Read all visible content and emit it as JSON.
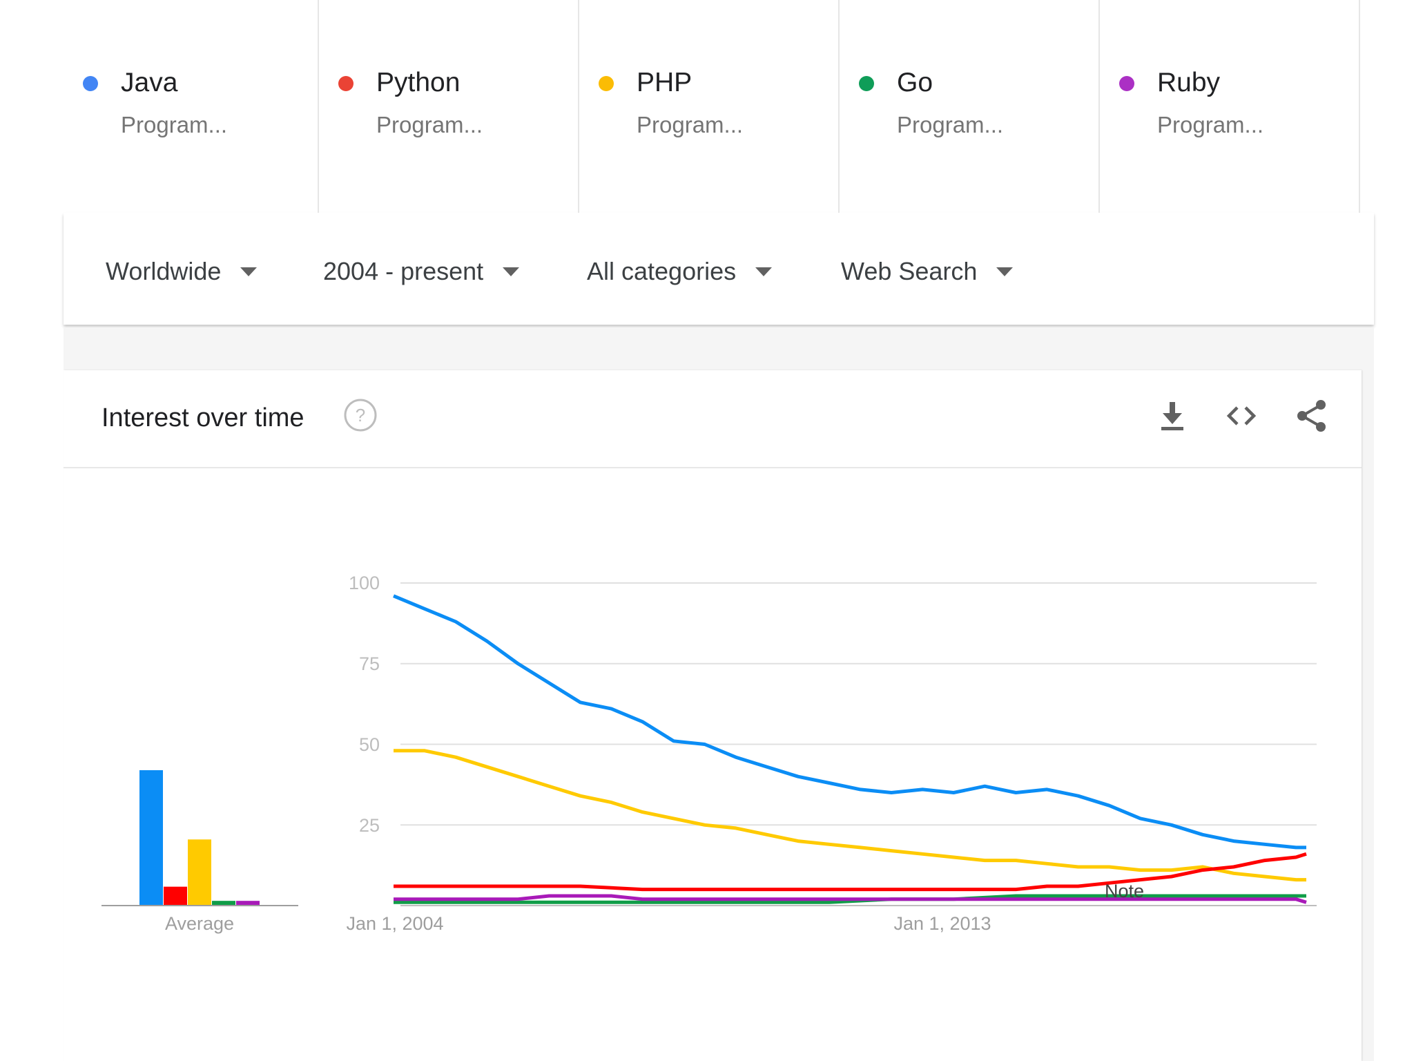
{
  "terms": [
    {
      "name": "Java",
      "subtitle": "Program...",
      "color": "#4285f4"
    },
    {
      "name": "Python",
      "subtitle": "Program...",
      "color": "#ea4335"
    },
    {
      "name": "PHP",
      "subtitle": "Program...",
      "color": "#fbbc04"
    },
    {
      "name": "Go",
      "subtitle": "Program...",
      "color": "#0f9d58"
    },
    {
      "name": "Ruby",
      "subtitle": "Program...",
      "color": "#ab30c4"
    }
  ],
  "filters": {
    "region": "Worldwide",
    "time": "2004 - present",
    "category": "All categories",
    "property": "Web Search"
  },
  "card": {
    "title": "Interest over time",
    "icons": [
      "help-icon",
      "download-icon",
      "embed-code-icon",
      "share-icon"
    ]
  },
  "chart_data": {
    "type": "line",
    "y_ticks": [
      "100",
      "75",
      "50",
      "25"
    ],
    "x_labels": [
      "Jan 1, 2004",
      "Jan 1, 2013"
    ],
    "ylim": [
      0,
      100
    ],
    "xlim": [
      "2004-01",
      "2018-09"
    ],
    "grid": true,
    "annotation": "Note",
    "average_label": "Average",
    "averages": [
      {
        "name": "Java",
        "value": 43,
        "color": "#0b8df5"
      },
      {
        "name": "Python",
        "value": 6,
        "color": "#ff0000"
      },
      {
        "name": "PHP",
        "value": 21,
        "color": "#ffca00"
      },
      {
        "name": "Go",
        "value": 1.5,
        "color": "#109d48"
      },
      {
        "name": "Ruby",
        "value": 1.5,
        "color": "#a81ab8"
      }
    ],
    "series": [
      {
        "name": "Java",
        "color": "#0b8df5",
        "x": [
          "2004-01",
          "2004-07",
          "2005-01",
          "2005-07",
          "2006-01",
          "2006-07",
          "2007-01",
          "2007-07",
          "2008-01",
          "2008-07",
          "2009-01",
          "2009-07",
          "2010-01",
          "2010-07",
          "2011-01",
          "2011-07",
          "2012-01",
          "2012-07",
          "2013-01",
          "2013-07",
          "2014-01",
          "2014-07",
          "2015-01",
          "2015-07",
          "2016-01",
          "2016-07",
          "2017-01",
          "2017-07",
          "2018-01",
          "2018-07",
          "2018-09"
        ],
        "values": [
          96,
          92,
          88,
          82,
          75,
          69,
          63,
          61,
          57,
          51,
          50,
          46,
          43,
          40,
          38,
          36,
          35,
          36,
          35,
          37,
          35,
          36,
          34,
          31,
          27,
          25,
          22,
          20,
          19,
          18,
          18
        ]
      },
      {
        "name": "Python",
        "color": "#ff0000",
        "x": [
          "2004-01",
          "2005-01",
          "2006-01",
          "2007-01",
          "2008-01",
          "2009-01",
          "2010-01",
          "2011-01",
          "2012-01",
          "2013-01",
          "2014-01",
          "2014-07",
          "2015-01",
          "2015-07",
          "2016-01",
          "2016-07",
          "2017-01",
          "2017-07",
          "2018-01",
          "2018-07",
          "2018-09"
        ],
        "values": [
          6,
          6,
          6,
          6,
          5,
          5,
          5,
          5,
          5,
          5,
          5,
          6,
          6,
          7,
          8,
          9,
          11,
          12,
          14,
          15,
          16
        ]
      },
      {
        "name": "PHP",
        "color": "#ffca00",
        "x": [
          "2004-01",
          "2004-07",
          "2005-01",
          "2005-07",
          "2006-01",
          "2006-07",
          "2007-01",
          "2007-07",
          "2008-01",
          "2008-07",
          "2009-01",
          "2009-07",
          "2010-01",
          "2010-07",
          "2011-01",
          "2011-07",
          "2012-01",
          "2012-07",
          "2013-01",
          "2013-07",
          "2014-01",
          "2014-07",
          "2015-01",
          "2015-07",
          "2016-01",
          "2016-07",
          "2017-01",
          "2017-07",
          "2018-01",
          "2018-07",
          "2018-09"
        ],
        "values": [
          48,
          48,
          46,
          43,
          40,
          37,
          34,
          32,
          29,
          27,
          25,
          24,
          22,
          20,
          19,
          18,
          17,
          16,
          15,
          14,
          14,
          13,
          12,
          12,
          11,
          11,
          12,
          10,
          9,
          8,
          8
        ]
      },
      {
        "name": "Go",
        "color": "#109d48",
        "x": [
          "2004-01",
          "2006-01",
          "2008-01",
          "2010-01",
          "2011-01",
          "2012-01",
          "2012-07",
          "2013-01",
          "2014-01",
          "2015-01",
          "2016-01",
          "2016-07",
          "2017-01",
          "2018-01",
          "2018-09"
        ],
        "values": [
          1,
          1,
          1,
          1,
          1,
          2,
          2,
          2,
          3,
          3,
          3,
          3,
          3,
          3,
          3
        ]
      },
      {
        "name": "Ruby",
        "color": "#a81ab8",
        "x": [
          "2004-01",
          "2005-01",
          "2006-01",
          "2006-07",
          "2007-01",
          "2007-07",
          "2008-01",
          "2009-01",
          "2010-01",
          "2011-01",
          "2012-01",
          "2013-01",
          "2014-01",
          "2015-01",
          "2016-01",
          "2017-01",
          "2018-01",
          "2018-07",
          "2018-09"
        ],
        "values": [
          2,
          2,
          2,
          3,
          3,
          3,
          2,
          2,
          2,
          2,
          2,
          2,
          2,
          2,
          2,
          2,
          2,
          2,
          1
        ]
      }
    ]
  }
}
